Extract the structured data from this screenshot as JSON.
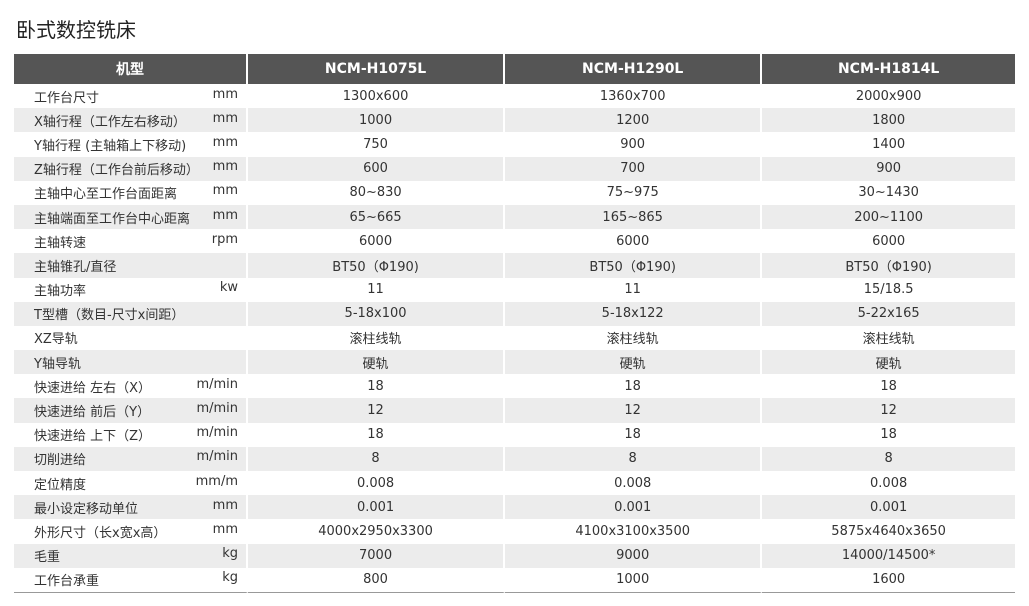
{
  "title": "卧式数控铣床",
  "table": {
    "header": [
      "机型",
      "NCM-H1075L",
      "NCM-H1290L",
      "NCM-H1814L"
    ],
    "rows": [
      {
        "label": "工作台尺寸",
        "unit": "mm",
        "values": [
          "1300x600",
          "1360x700",
          "2000x900"
        ]
      },
      {
        "label": "X轴行程（工作左右移动）",
        "unit": "mm",
        "values": [
          "1000",
          "1200",
          "1800"
        ]
      },
      {
        "label": "Y轴行程 (主轴箱上下移动)",
        "unit": "mm",
        "values": [
          "750",
          "900",
          "1400"
        ]
      },
      {
        "label": "Z轴行程（工作台前后移动）",
        "unit": "mm",
        "values": [
          "600",
          "700",
          "900"
        ]
      },
      {
        "label": "主轴中心至工作台面距离",
        "unit": "mm",
        "values": [
          "80~830",
          "75~975",
          "30~1430"
        ]
      },
      {
        "label": "主轴端面至工作台中心距离",
        "unit": "mm",
        "values": [
          "65~665",
          "165~865",
          "200~1100"
        ]
      },
      {
        "label": "主轴转速",
        "unit": "rpm",
        "values": [
          "6000",
          "6000",
          "6000"
        ]
      },
      {
        "label": "主轴锥孔/直径",
        "values": [
          "BT50（Φ190)",
          "BT50（Φ190)",
          "BT50（Φ190)"
        ]
      },
      {
        "label": "主轴功率",
        "unit": "kw",
        "values": [
          "11",
          "11",
          "15/18.5"
        ]
      },
      {
        "label": "T型槽（数目-尺寸x间距）",
        "values": [
          "5-18x100",
          "5-18x122",
          "5-22x165"
        ]
      },
      {
        "label": "XZ导轨",
        "values": [
          "滚柱线轨",
          "滚柱线轨",
          "滚柱线轨"
        ]
      },
      {
        "label": "Y轴导轨",
        "values": [
          "硬轨",
          "硬轨",
          "硬轨"
        ]
      },
      {
        "label": "快速进给 左右（X）",
        "unit": "m/min",
        "values": [
          "18",
          "18",
          "18"
        ]
      },
      {
        "label": "快速进给 前后（Y）",
        "unit": "m/min",
        "values": [
          "12",
          "12",
          "12"
        ]
      },
      {
        "label": "快速进给 上下（Z）",
        "unit": "m/min",
        "values": [
          "18",
          "18",
          "18"
        ]
      },
      {
        "label": "切削进给",
        "unit": "m/min",
        "values": [
          "8",
          "8",
          "8"
        ]
      },
      {
        "label": "定位精度",
        "unit": "mm/m",
        "values": [
          "0.008",
          "0.008",
          "0.008"
        ]
      },
      {
        "label": "最小设定移动单位",
        "unit": "mm",
        "values": [
          "0.001",
          "0.001",
          "0.001"
        ]
      },
      {
        "label": "外形尺寸（长x宽x高）",
        "unit": "mm",
        "values": [
          "4000x2950x3300",
          "4100x3100x3500",
          "5875x4640x3650"
        ]
      },
      {
        "label": "毛重",
        "unit": "kg",
        "values": [
          "7000",
          "9000",
          "14000/14500*"
        ]
      },
      {
        "label": "工作台承重",
        "unit": "kg",
        "values": [
          "800",
          "1000",
          "1600"
        ]
      }
    ]
  }
}
